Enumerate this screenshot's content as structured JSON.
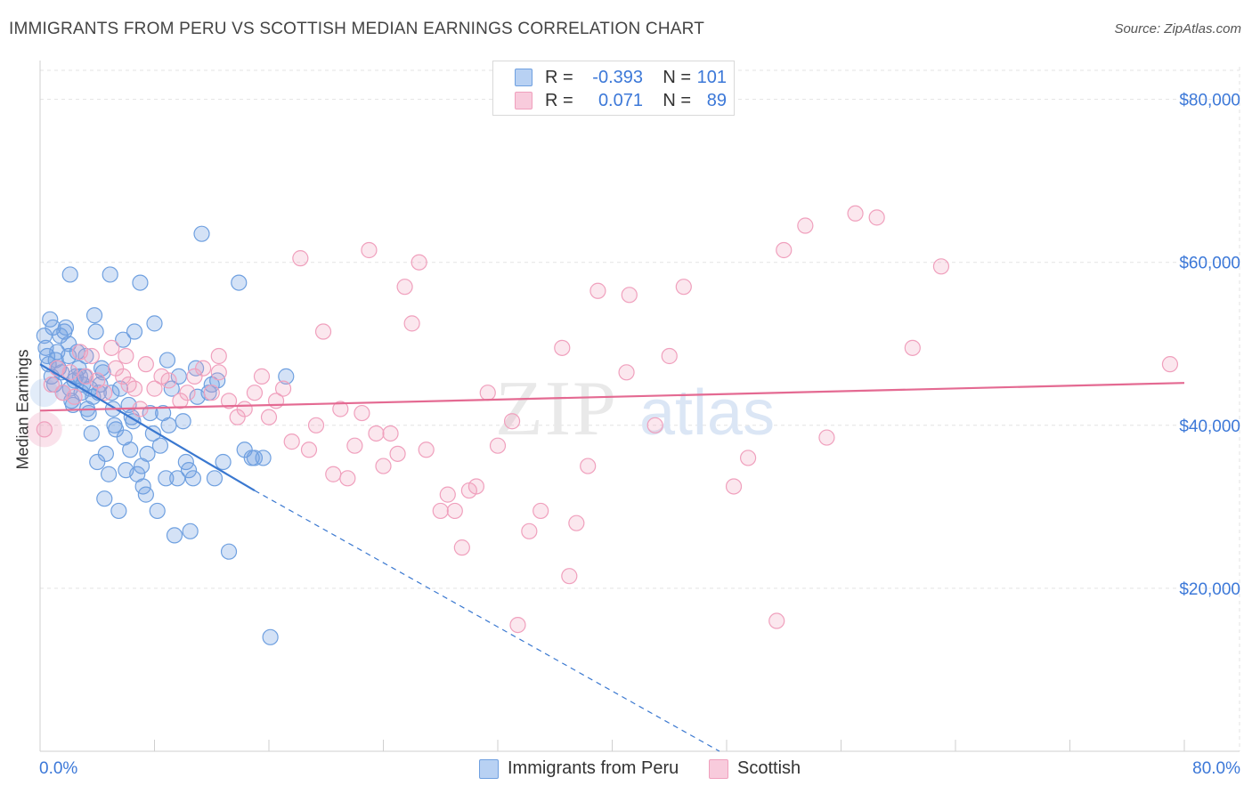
{
  "title": "IMMIGRANTS FROM PERU VS SCOTTISH MEDIAN EARNINGS CORRELATION CHART",
  "source": "Source: ZipAtlas.com",
  "legend": {
    "row1": {
      "r_label": "R =",
      "r_value": "-0.393",
      "n_label": "N =",
      "n_value": "101"
    },
    "row2": {
      "r_label": "R =",
      "r_value": "0.071",
      "n_label": "N =",
      "n_value": "89"
    }
  },
  "x_axis": {
    "min_label": "0.0%",
    "max_label": "80.0%"
  },
  "watermark": {
    "part1": "ZIP",
    "part2": "atlas"
  },
  "chart_data": {
    "type": "scatter",
    "title": "IMMIGRANTS FROM PERU VS SCOTTISH MEDIAN EARNINGS CORRELATION CHART",
    "xlabel": "",
    "ylabel": "Median Earnings",
    "xlim": [
      0,
      80
    ],
    "ylim": [
      0,
      84000
    ],
    "y_ticks": [
      20000,
      40000,
      60000,
      80000
    ],
    "y_tick_labels": [
      "$20,000",
      "$40,000",
      "$60,000",
      "$80,000"
    ],
    "grid": true,
    "series": [
      {
        "name": "Immigrants from Peru",
        "color": "#6fa0e0",
        "line_color": "#3a78d0",
        "trend": {
          "x0": 0,
          "y0": 47500,
          "x1": 15,
          "y1": 32000,
          "dash_to_x": 47.5,
          "dash_to_y": 0
        },
        "points": [
          [
            0.3,
            51000
          ],
          [
            0.4,
            49500
          ],
          [
            0.5,
            48500
          ],
          [
            0.6,
            47500
          ],
          [
            0.8,
            46000
          ],
          [
            1.0,
            45000
          ],
          [
            1.1,
            48000
          ],
          [
            1.3,
            47000
          ],
          [
            1.5,
            46500
          ],
          [
            1.6,
            44000
          ],
          [
            1.7,
            51500
          ],
          [
            1.8,
            52000
          ],
          [
            2.0,
            48500
          ],
          [
            2.1,
            44500
          ],
          [
            2.2,
            43000
          ],
          [
            2.3,
            42500
          ],
          [
            2.4,
            45500
          ],
          [
            2.5,
            46000
          ],
          [
            2.6,
            49000
          ],
          [
            2.7,
            47000
          ],
          [
            2.9,
            44000
          ],
          [
            3.0,
            45000
          ],
          [
            3.1,
            46000
          ],
          [
            3.3,
            42000
          ],
          [
            3.4,
            41500
          ],
          [
            3.5,
            44500
          ],
          [
            3.6,
            39000
          ],
          [
            3.8,
            53500
          ],
          [
            3.9,
            51500
          ],
          [
            4.0,
            35500
          ],
          [
            4.2,
            45000
          ],
          [
            4.3,
            47000
          ],
          [
            4.5,
            31000
          ],
          [
            4.6,
            36500
          ],
          [
            4.8,
            34000
          ],
          [
            5.0,
            44000
          ],
          [
            5.1,
            42000
          ],
          [
            5.3,
            39500
          ],
          [
            5.5,
            29500
          ],
          [
            5.6,
            44500
          ],
          [
            5.8,
            50500
          ],
          [
            6.0,
            34500
          ],
          [
            6.2,
            42500
          ],
          [
            6.4,
            41000
          ],
          [
            6.6,
            51500
          ],
          [
            6.8,
            34000
          ],
          [
            7.0,
            57500
          ],
          [
            7.2,
            32500
          ],
          [
            7.4,
            31500
          ],
          [
            7.5,
            36500
          ],
          [
            7.7,
            41500
          ],
          [
            7.9,
            39000
          ],
          [
            8.0,
            52500
          ],
          [
            8.2,
            29500
          ],
          [
            8.4,
            37500
          ],
          [
            8.6,
            41500
          ],
          [
            8.8,
            33500
          ],
          [
            9.0,
            40000
          ],
          [
            9.2,
            44500
          ],
          [
            9.4,
            26500
          ],
          [
            9.7,
            46000
          ],
          [
            10.0,
            40500
          ],
          [
            10.2,
            35500
          ],
          [
            10.4,
            34500
          ],
          [
            10.5,
            27000
          ],
          [
            10.7,
            33500
          ],
          [
            11.0,
            43500
          ],
          [
            11.3,
            63500
          ],
          [
            12.0,
            45000
          ],
          [
            12.2,
            33500
          ],
          [
            12.8,
            35500
          ],
          [
            13.2,
            24500
          ],
          [
            13.9,
            57500
          ],
          [
            14.3,
            37000
          ],
          [
            15.0,
            36000
          ],
          [
            15.6,
            36000
          ],
          [
            16.1,
            14000
          ],
          [
            2.1,
            58500
          ],
          [
            4.9,
            58500
          ],
          [
            1.2,
            49000
          ],
          [
            3.2,
            48500
          ],
          [
            0.9,
            52000
          ],
          [
            2.8,
            46000
          ],
          [
            4.1,
            44000
          ],
          [
            6.5,
            40500
          ],
          [
            8.9,
            48000
          ],
          [
            10.9,
            47000
          ],
          [
            12.4,
            45500
          ],
          [
            14.8,
            36000
          ],
          [
            17.2,
            46000
          ],
          [
            5.2,
            40000
          ],
          [
            6.3,
            37000
          ],
          [
            7.1,
            35000
          ],
          [
            3.7,
            43500
          ],
          [
            2.0,
            50000
          ],
          [
            1.4,
            51000
          ],
          [
            9.6,
            33500
          ],
          [
            11.8,
            44000
          ],
          [
            4.4,
            46500
          ],
          [
            0.7,
            53000
          ],
          [
            5.9,
            38500
          ]
        ]
      },
      {
        "name": "Scottish",
        "color": "#f0a0bd",
        "line_color": "#e46a92",
        "trend": {
          "x0": 0,
          "y0": 41800,
          "x1": 80,
          "y1": 45200
        },
        "points": [
          [
            0.3,
            39500
          ],
          [
            0.8,
            45000
          ],
          [
            1.2,
            47000
          ],
          [
            1.6,
            44000
          ],
          [
            2.1,
            46500
          ],
          [
            2.4,
            43500
          ],
          [
            2.8,
            49000
          ],
          [
            3.2,
            46000
          ],
          [
            3.6,
            48500
          ],
          [
            4.0,
            45500
          ],
          [
            4.5,
            44000
          ],
          [
            5.0,
            49500
          ],
          [
            5.3,
            47000
          ],
          [
            5.8,
            46000
          ],
          [
            6.2,
            45000
          ],
          [
            6.6,
            44500
          ],
          [
            7.0,
            42000
          ],
          [
            7.4,
            47500
          ],
          [
            8.0,
            44500
          ],
          [
            8.5,
            46000
          ],
          [
            9.0,
            45500
          ],
          [
            9.8,
            43000
          ],
          [
            10.3,
            44000
          ],
          [
            10.8,
            46000
          ],
          [
            11.4,
            47000
          ],
          [
            12.0,
            44000
          ],
          [
            12.5,
            48500
          ],
          [
            13.2,
            43000
          ],
          [
            13.8,
            41000
          ],
          [
            14.3,
            42000
          ],
          [
            15.0,
            44000
          ],
          [
            15.5,
            46000
          ],
          [
            16.0,
            41000
          ],
          [
            16.5,
            43000
          ],
          [
            17.0,
            44500
          ],
          [
            17.6,
            38000
          ],
          [
            18.2,
            60500
          ],
          [
            18.8,
            37000
          ],
          [
            19.3,
            40000
          ],
          [
            19.8,
            51500
          ],
          [
            20.5,
            34000
          ],
          [
            21.0,
            42000
          ],
          [
            21.5,
            33500
          ],
          [
            22.0,
            37500
          ],
          [
            22.5,
            41500
          ],
          [
            23.0,
            61500
          ],
          [
            23.5,
            39000
          ],
          [
            24.0,
            35000
          ],
          [
            24.5,
            39000
          ],
          [
            25.0,
            36500
          ],
          [
            25.5,
            57000
          ],
          [
            26.0,
            52500
          ],
          [
            26.5,
            60000
          ],
          [
            27.0,
            37000
          ],
          [
            28.0,
            29500
          ],
          [
            28.5,
            31500
          ],
          [
            29.0,
            29500
          ],
          [
            29.5,
            25000
          ],
          [
            30.0,
            32000
          ],
          [
            30.5,
            32500
          ],
          [
            31.3,
            44000
          ],
          [
            32.0,
            37500
          ],
          [
            33.0,
            40500
          ],
          [
            33.4,
            15500
          ],
          [
            34.2,
            27000
          ],
          [
            35.0,
            29500
          ],
          [
            36.5,
            49500
          ],
          [
            37.0,
            21500
          ],
          [
            37.5,
            28000
          ],
          [
            38.3,
            35000
          ],
          [
            39.0,
            56500
          ],
          [
            41.0,
            46500
          ],
          [
            41.2,
            56000
          ],
          [
            43.0,
            40000
          ],
          [
            44.0,
            48500
          ],
          [
            45.0,
            57000
          ],
          [
            48.5,
            32500
          ],
          [
            49.5,
            36000
          ],
          [
            51.5,
            16000
          ],
          [
            52.0,
            61500
          ],
          [
            53.5,
            64500
          ],
          [
            55.0,
            38500
          ],
          [
            57.0,
            66000
          ],
          [
            58.5,
            65500
          ],
          [
            61.0,
            49500
          ],
          [
            63.0,
            59500
          ],
          [
            79.0,
            47500
          ],
          [
            6.0,
            48500
          ],
          [
            12.5,
            46500
          ]
        ]
      }
    ]
  }
}
